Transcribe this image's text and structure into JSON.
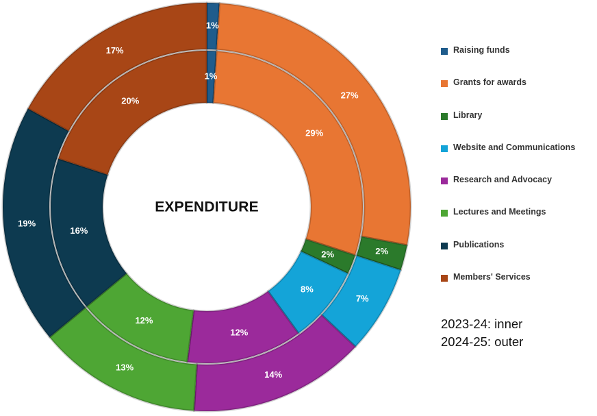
{
  "chart_data": {
    "type": "donut",
    "title": "EXPENDITURE",
    "categories": [
      "Raising funds",
      "Grants for awards",
      "Library",
      "Website and Communications",
      "Research and Advocacy",
      "Lectures and Meetings",
      "Publications",
      "Members' Services"
    ],
    "colors": [
      "#1f5c8c",
      "#e87633",
      "#2b7a2b",
      "#14a4d8",
      "#9b2a9b",
      "#4ea634",
      "#0d3a50",
      "#a84616"
    ],
    "series": [
      {
        "name": "2023-24",
        "ring": "inner",
        "values": [
          1,
          29,
          2,
          8,
          12,
          12,
          16,
          20
        ],
        "labels": [
          "1%",
          "29%",
          "2%",
          "8%",
          "12%",
          "12%",
          "16%",
          "20%"
        ]
      },
      {
        "name": "2024-25",
        "ring": "outer",
        "values": [
          1,
          27,
          2,
          7,
          14,
          13,
          19,
          17
        ],
        "labels": [
          "1%",
          "27%",
          "2%",
          "7%",
          "14%",
          "13%",
          "19%",
          "17%"
        ]
      }
    ],
    "legend_position": "right",
    "notes": [
      "2023-24: inner",
      "2024-25: outer"
    ]
  }
}
